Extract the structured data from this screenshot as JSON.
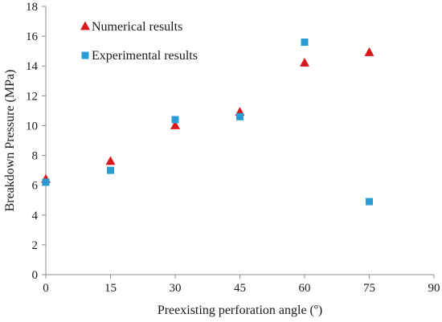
{
  "chart_data": {
    "type": "scatter",
    "xlabel": "Preexisting perforation angle (º)",
    "ylabel": "Breakdown Pressure (MPa)",
    "xlim": [
      0,
      90
    ],
    "ylim": [
      0,
      18
    ],
    "xticks": [
      "0",
      "15",
      "30",
      "45",
      "60",
      "75",
      "90"
    ],
    "yticks": [
      "0",
      "2",
      "4",
      "6",
      "8",
      "10",
      "12",
      "14",
      "16",
      "18"
    ],
    "grid": false,
    "legend_position": "top-left",
    "series": [
      {
        "name": "Numerical results",
        "marker": "triangle",
        "color": "#d7191c",
        "points": [
          {
            "x": 0,
            "y": 6.4
          },
          {
            "x": 15,
            "y": 7.6
          },
          {
            "x": 30,
            "y": 10.0
          },
          {
            "x": 45,
            "y": 10.9
          },
          {
            "x": 60,
            "y": 14.2
          },
          {
            "x": 75,
            "y": 14.9
          }
        ]
      },
      {
        "name": "Experimental results",
        "marker": "square",
        "color": "#2b9bd3",
        "points": [
          {
            "x": 0,
            "y": 6.2
          },
          {
            "x": 15,
            "y": 7.0
          },
          {
            "x": 30,
            "y": 10.4
          },
          {
            "x": 45,
            "y": 10.6
          },
          {
            "x": 60,
            "y": 15.6
          },
          {
            "x": 75,
            "y": 4.9
          }
        ]
      }
    ]
  }
}
